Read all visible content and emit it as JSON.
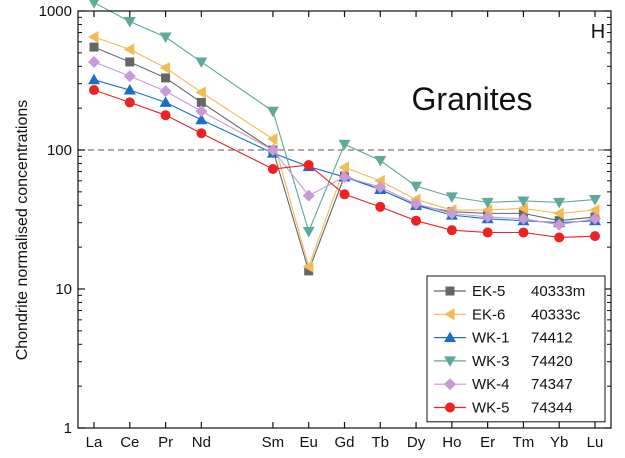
{
  "chart_data": {
    "type": "line",
    "title": "",
    "panel_label": "H",
    "annotation": "Granites",
    "ylabel": "Chondrite normalised concentrations",
    "xlabel": "",
    "y_scale": "log",
    "ylim": [
      1,
      1000
    ],
    "y_ticks": [
      1,
      10,
      100,
      1000
    ],
    "reference_line": {
      "y": 100,
      "style": "dashed"
    },
    "categories": [
      "La",
      "Ce",
      "Pr",
      "Nd",
      "Sm",
      "Eu",
      "Gd",
      "Tb",
      "Dy",
      "Ho",
      "Er",
      "Tm",
      "Yb",
      "Lu"
    ],
    "category_slots": [
      1,
      2,
      3,
      4,
      6,
      7,
      8,
      9,
      10,
      11,
      12,
      13,
      14,
      15
    ],
    "legend_position": "bottom-right",
    "series": [
      {
        "name": "EK-5",
        "label": "40333m",
        "color": "#666666",
        "marker": "square",
        "values": [
          550,
          430,
          330,
          220,
          100,
          13.5,
          65,
          52,
          40,
          36,
          35,
          35,
          31,
          33
        ]
      },
      {
        "name": "EK-6",
        "label": "40333c",
        "color": "#f2bb55",
        "marker": "triangle-left",
        "values": [
          650,
          530,
          390,
          260,
          120,
          14.5,
          75,
          60,
          44,
          37,
          37,
          38,
          35,
          37
        ]
      },
      {
        "name": "WK-1",
        "label": "74412",
        "color": "#1a6fc4",
        "marker": "triangle-up",
        "values": [
          320,
          270,
          220,
          165,
          95,
          76,
          64,
          52,
          40,
          34,
          32,
          31,
          30,
          31
        ]
      },
      {
        "name": "WK-3",
        "label": "74420",
        "color": "#5fa89a",
        "marker": "triangle-down",
        "values": [
          1150,
          840,
          650,
          430,
          190,
          26,
          110,
          84,
          55,
          46,
          42,
          43,
          42,
          44
        ]
      },
      {
        "name": "WK-4",
        "label": "74347",
        "color": "#c99ad6",
        "marker": "diamond",
        "values": [
          430,
          340,
          265,
          190,
          100,
          47,
          64,
          54,
          41,
          35,
          33,
          32,
          29,
          32
        ]
      },
      {
        "name": "WK-5",
        "label": "74344",
        "color": "#ee2222",
        "marker": "circle",
        "values": [
          270,
          220,
          178,
          132,
          73,
          78,
          48,
          39,
          31,
          26.5,
          25.5,
          25.5,
          23.5,
          24
        ]
      }
    ]
  }
}
